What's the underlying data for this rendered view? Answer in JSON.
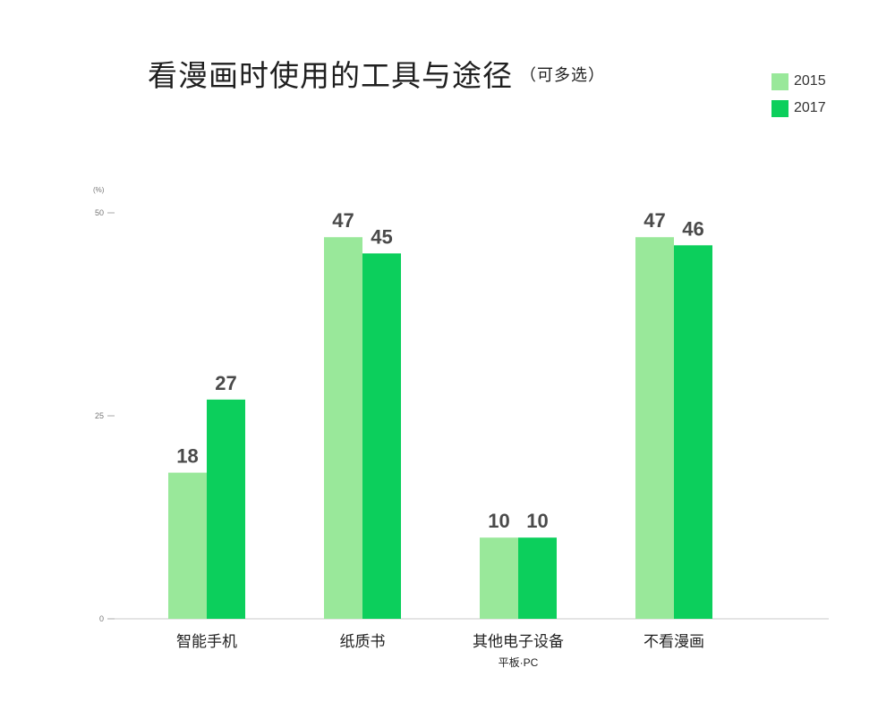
{
  "title": "看漫画时使用的工具与途径",
  "subtitle": "（可多选）",
  "legend": [
    {
      "label": "2015",
      "color": "#99e89a"
    },
    {
      "label": "2017",
      "color": "#0ccf5c"
    }
  ],
  "chart_data": {
    "type": "bar",
    "title": "看漫画时使用的工具与途径",
    "subtitle": "（可多选）",
    "ylabel": "(%)",
    "xlabel": "",
    "ylim": [
      0,
      50
    ],
    "yticks": [
      "0",
      "25",
      "50"
    ],
    "grid": false,
    "legend_position": "top-right",
    "categories": [
      "智能手机",
      "纸质书",
      "其他电子设备",
      "不看漫画"
    ],
    "category_sublabels": [
      "",
      "",
      "平板·PC",
      ""
    ],
    "series": [
      {
        "name": "2015",
        "color": "#99e89a",
        "values": [
          18,
          47,
          10,
          47
        ]
      },
      {
        "name": "2017",
        "color": "#0ccf5c",
        "values": [
          27,
          45,
          10,
          46
        ]
      }
    ]
  }
}
